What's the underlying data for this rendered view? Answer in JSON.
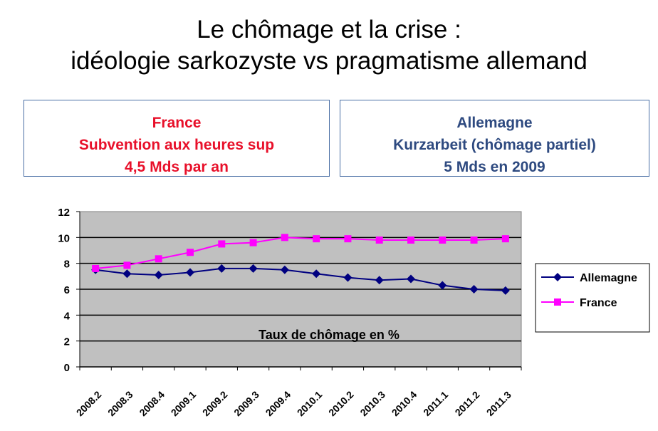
{
  "title": {
    "line1": "Le chômage et la crise :",
    "line2": "idéologie sarkozyste vs pragmatisme allemand"
  },
  "france_box": {
    "line1": "France",
    "line2": "Subvention aux heures sup",
    "line3": "4,5 Mds par an",
    "color": "#e8102a"
  },
  "allemagne_box": {
    "line1": "Allemagne",
    "line2": "Kurzarbeit (chômage partiel)",
    "line3": "5 Mds en 2009",
    "color": "#2e4a80"
  },
  "chart_data": {
    "type": "line",
    "annotation": "Taux de chômage en %",
    "categories": [
      "2008.2",
      "2008.3",
      "2008.4",
      "2009.1",
      "2009.2",
      "2009.3",
      "2009.4",
      "2010.1",
      "2010.2",
      "2010.3",
      "2010.4",
      "2011.1",
      "2011.2",
      "2011.3"
    ],
    "ylim": [
      0,
      12
    ],
    "yticks": [
      0,
      2,
      4,
      6,
      8,
      10,
      12
    ],
    "grid": true,
    "legend_placement": "right",
    "series": [
      {
        "name": "Allemagne",
        "color": "#000080",
        "marker": "diamond",
        "values": [
          7.5,
          7.2,
          7.1,
          7.3,
          7.6,
          7.6,
          7.5,
          7.2,
          6.9,
          6.7,
          6.8,
          6.3,
          6.0,
          5.9
        ]
      },
      {
        "name": "France",
        "color": "#ff00ff",
        "marker": "square",
        "values": [
          7.6,
          7.85,
          8.35,
          8.85,
          9.5,
          9.6,
          10.0,
          9.9,
          9.9,
          9.8,
          9.8,
          9.8,
          9.8,
          9.9
        ]
      }
    ]
  }
}
